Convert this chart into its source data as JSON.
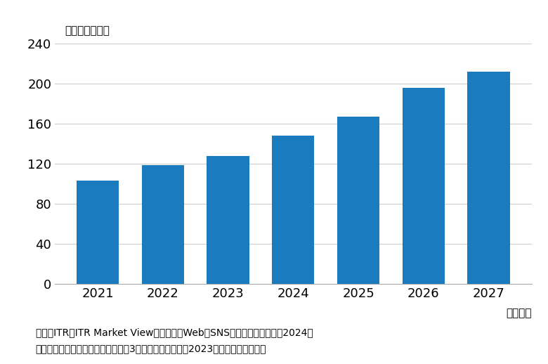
{
  "years": [
    "2021",
    "2022",
    "2023",
    "2024",
    "2025",
    "2026",
    "2027"
  ],
  "values": [
    103,
    119,
    128,
    148,
    167,
    196,
    212
  ],
  "bar_color": "#1a7bbf",
  "background_color": "#ffffff",
  "ylim": [
    0,
    240
  ],
  "yticks": [
    0,
    40,
    80,
    120,
    160,
    200,
    240
  ],
  "unit_label": "（単位：億円）",
  "xlabel": "（年度）",
  "footnote_line1": "出典：ITR『ITR Market View：メール／Web／SNSマーケティング市刄1 2024』",
  "footnote_line2": "＊ベンダーの売上金額を対象とし、3月期ベースで换算。2023年度以降は予測値。",
  "grid_color": "#cccccc",
  "tick_fontsize": 13,
  "unit_fontsize": 11,
  "footnote_fontsize": 10,
  "xlabel_fontsize": 11,
  "bar_width": 0.65
}
